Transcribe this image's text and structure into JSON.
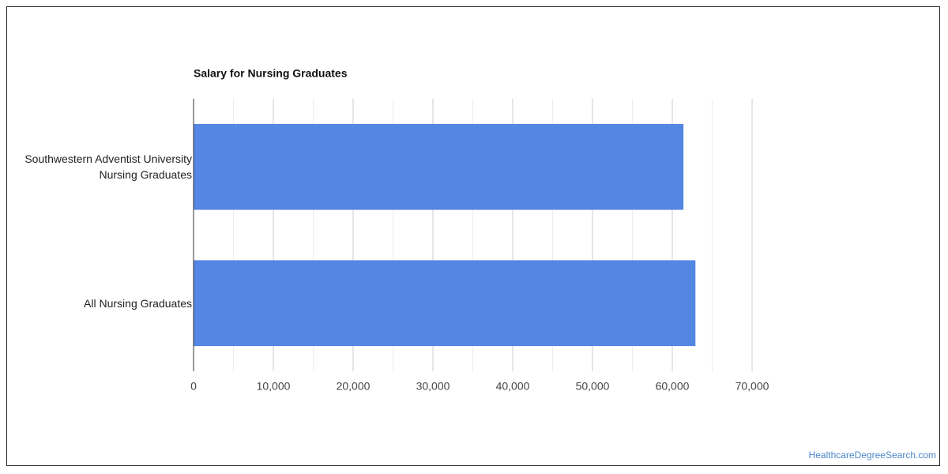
{
  "chart_data": {
    "type": "hbar",
    "title": "Salary for Nursing Graduates",
    "categories": [
      "Southwestern Adventist University Nursing Graduates",
      "All Nursing Graduates"
    ],
    "values": [
      61400,
      62900
    ],
    "color": "#5486e3",
    "xlim": [
      0,
      70000
    ],
    "xticks": [
      0,
      {
        "value": 10000,
        "label": "10,000"
      },
      {
        "value": 20000,
        "label": "20,000"
      },
      {
        "value": 30000,
        "label": "30,000"
      },
      {
        "value": 40000,
        "label": "40,000"
      },
      {
        "value": 50000,
        "label": "50,000"
      },
      {
        "value": 60000,
        "label": "60,000"
      },
      {
        "value": 70000,
        "label": "70,000"
      }
    ],
    "xminorticks": [
      5000,
      15000,
      25000,
      35000,
      45000,
      55000,
      65000
    ],
    "grid": true,
    "source": "HealthcareDegreeSearch.com"
  }
}
